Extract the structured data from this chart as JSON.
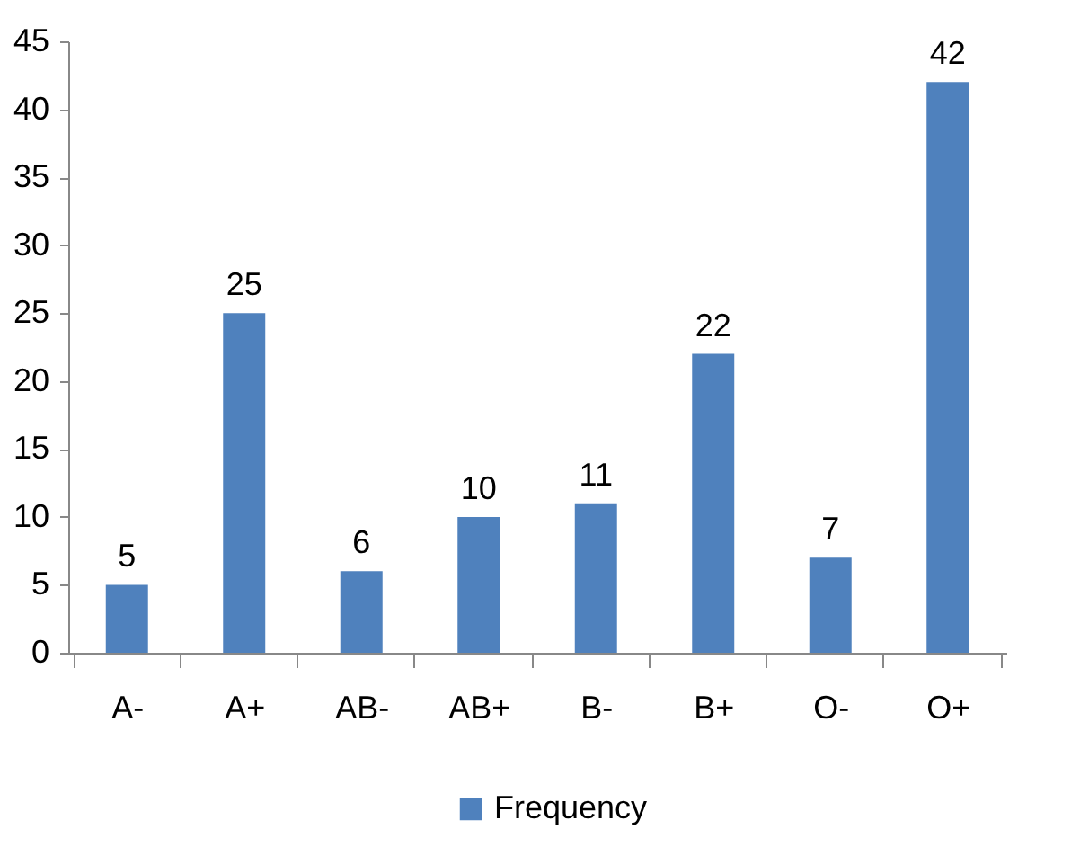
{
  "chart_data": {
    "type": "bar",
    "categories": [
      "A-",
      "A+",
      "AB-",
      "AB+",
      "B-",
      "B+",
      "O-",
      "O+"
    ],
    "series": [
      {
        "name": "Frequency",
        "color": "#4f81bd",
        "values": [
          5,
          25,
          6,
          10,
          11,
          22,
          7,
          42
        ]
      }
    ],
    "ylim": [
      0,
      45
    ],
    "yticks": [
      0,
      5,
      10,
      15,
      20,
      25,
      30,
      35,
      40,
      45
    ],
    "data_labels": true,
    "grid": false,
    "legend": "bottom"
  }
}
